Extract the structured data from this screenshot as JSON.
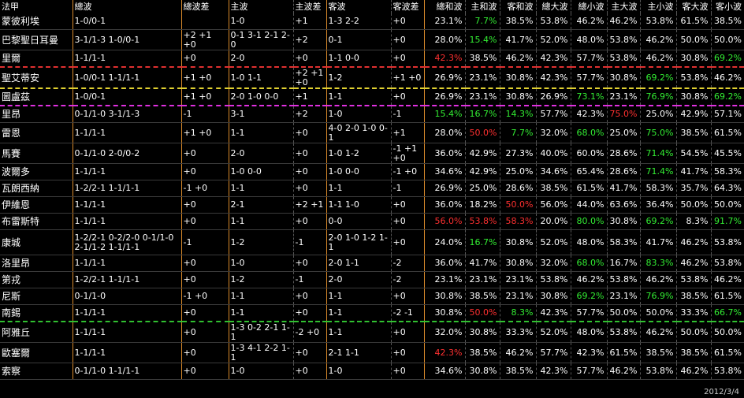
{
  "chart_data": {
    "type": "table",
    "columns": [
      "法甲",
      "總波",
      "總波差",
      "主波",
      "主波差",
      "客波",
      "客波差",
      "總和波",
      "主和波",
      "客和波",
      "總大波",
      "總小波",
      "主大波",
      "主小波",
      "客大波",
      "客小波"
    ],
    "rows": [
      [
        "蒙彼利埃",
        "1-0/0-1",
        "",
        "1-0",
        "+1",
        "1-3 2-2",
        "+0",
        "23.1%",
        "7.7%",
        "38.5%",
        "53.8%",
        "46.2%",
        "46.2%",
        "53.8%",
        "61.5%",
        "38.5%"
      ],
      [
        "巴黎聖日耳曼",
        "3-1/1-3 1-0/0-1",
        "+2 +1 +0",
        "0-1 3-1 2-1 2-0",
        "+2",
        "0-1",
        "+0",
        "28.0%",
        "15.4%",
        "41.7%",
        "52.0%",
        "48.0%",
        "53.8%",
        "46.2%",
        "50.0%",
        "50.0%"
      ],
      [
        "里爾",
        "1-1/1-1",
        "+0",
        "2-0",
        "+0",
        "1-1 0-0",
        "+0",
        "42.3%",
        "38.5%",
        "46.2%",
        "42.3%",
        "57.7%",
        "53.8%",
        "46.2%",
        "30.8%",
        "69.2%"
      ],
      [
        "聖艾蒂安",
        "1-0/0-1 1-1/1-1",
        "+1 +0",
        "1-0 1-1",
        "+2 +1 +0",
        "1-2",
        "+1 +0",
        "26.9%",
        "23.1%",
        "30.8%",
        "42.3%",
        "57.7%",
        "30.8%",
        "69.2%",
        "53.8%",
        "46.2%"
      ],
      [
        "圖盧茲",
        "1-0/0-1",
        "+1 +0",
        "2-0 1-0 0-0",
        "+1",
        "1-1",
        "+0",
        "26.9%",
        "23.1%",
        "30.8%",
        "26.9%",
        "73.1%",
        "23.1%",
        "76.9%",
        "30.8%",
        "69.2%"
      ],
      [
        "里昂",
        "0-1/1-0 3-1/1-3",
        "-1",
        "3-1",
        "+2",
        "1-0",
        "-1",
        "15.4%",
        "16.7%",
        "14.3%",
        "57.7%",
        "42.3%",
        "75.0%",
        "25.0%",
        "42.9%",
        "57.1%"
      ],
      [
        "雷恩",
        "1-1/1-1",
        "+1 +0",
        "1-1",
        "+0",
        "4-0 2-0 1-0 0-1",
        "+1",
        "28.0%",
        "50.0%",
        "7.7%",
        "32.0%",
        "68.0%",
        "25.0%",
        "75.0%",
        "38.5%",
        "61.5%"
      ],
      [
        "馬賽",
        "0-1/1-0 2-0/0-2",
        "+0",
        "2-0",
        "+0",
        "1-0 1-2",
        "-1 +1 +0",
        "36.0%",
        "42.9%",
        "27.3%",
        "40.0%",
        "60.0%",
        "28.6%",
        "71.4%",
        "54.5%",
        "45.5%"
      ],
      [
        "波爾多",
        "1-1/1-1",
        "+0",
        "1-0 0-0",
        "+0",
        "1-0 0-0",
        "-1 +0",
        "34.6%",
        "42.9%",
        "25.0%",
        "34.6%",
        "65.4%",
        "28.6%",
        "71.4%",
        "41.7%",
        "58.3%"
      ],
      [
        "瓦朗西納",
        "1-2/2-1 1-1/1-1",
        "-1 +0",
        "1-1",
        "+0",
        "1-1",
        "-1",
        "26.9%",
        "25.0%",
        "28.6%",
        "38.5%",
        "61.5%",
        "41.7%",
        "58.3%",
        "35.7%",
        "64.3%"
      ],
      [
        "伊維恩",
        "1-1/1-1",
        "+0",
        "2-1",
        "+2 +1",
        "1-1 1-0",
        "+0",
        "36.0%",
        "18.2%",
        "50.0%",
        "56.0%",
        "44.0%",
        "63.6%",
        "36.4%",
        "50.0%",
        "50.0%"
      ],
      [
        "布雷斯特",
        "1-1/1-1",
        "+0",
        "1-1",
        "+0",
        "0-0",
        "+0",
        "56.0%",
        "53.8%",
        "58.3%",
        "20.0%",
        "80.0%",
        "30.8%",
        "69.2%",
        "8.3%",
        "91.7%"
      ],
      [
        "康城",
        "1-2/2-1 0-2/2-0 0-1/1-0 2-1/1-2 1-1/1-1",
        "-1",
        "1-2",
        "-1",
        "2-0 1-0 1-2 1-1",
        "+0",
        "24.0%",
        "16.7%",
        "30.8%",
        "52.0%",
        "48.0%",
        "58.3%",
        "41.7%",
        "46.2%",
        "53.8%"
      ],
      [
        "洛里昂",
        "1-1/1-1",
        "+0",
        "1-0",
        "+0",
        "2-0 1-1",
        "-2",
        "36.0%",
        "41.7%",
        "30.8%",
        "32.0%",
        "68.0%",
        "16.7%",
        "83.3%",
        "46.2%",
        "53.8%"
      ],
      [
        "第戎",
        "1-2/2-1 1-1/1-1",
        "+0",
        "1-2",
        "-1",
        "2-0",
        "-2",
        "23.1%",
        "23.1%",
        "23.1%",
        "53.8%",
        "46.2%",
        "53.8%",
        "46.2%",
        "53.8%",
        "46.2%"
      ],
      [
        "尼斯",
        "0-1/1-0",
        "-1 +0",
        "1-1",
        "+0",
        "1-1",
        "+0",
        "30.8%",
        "38.5%",
        "23.1%",
        "30.8%",
        "69.2%",
        "23.1%",
        "76.9%",
        "38.5%",
        "61.5%"
      ],
      [
        "南錫",
        "1-1/1-1",
        "+0",
        "1-1",
        "+0",
        "1-1",
        "-2 -1",
        "30.8%",
        "50.0%",
        "8.3%",
        "42.3%",
        "57.7%",
        "50.0%",
        "50.0%",
        "33.3%",
        "66.7%"
      ],
      [
        "阿雅丘",
        "1-1/1-1",
        "+0",
        "1-3 0-2 2-1 1-1",
        "-2 +0",
        "1-1",
        "+0",
        "32.0%",
        "30.8%",
        "33.3%",
        "52.0%",
        "48.0%",
        "53.8%",
        "46.2%",
        "50.0%",
        "50.0%"
      ],
      [
        "歐塞爾",
        "1-1/1-1",
        "+0",
        "1-3 4-1 2-2 1-1",
        "+0",
        "2-1 1-1",
        "+0",
        "42.3%",
        "38.5%",
        "46.2%",
        "57.7%",
        "42.3%",
        "61.5%",
        "38.5%",
        "38.5%",
        "61.5%"
      ],
      [
        "索察",
        "0-1/1-0 1-1/1-1",
        "+0",
        "1-0",
        "+0",
        "1-0",
        "+0",
        "34.6%",
        "30.8%",
        "38.5%",
        "42.3%",
        "57.7%",
        "46.2%",
        "53.8%",
        "46.2%",
        "53.8%"
      ]
    ],
    "highlights": {
      "red": [
        [
          2,
          7
        ],
        [
          6,
          8
        ],
        [
          10,
          9
        ],
        [
          11,
          7
        ],
        [
          11,
          8
        ],
        [
          11,
          9
        ],
        [
          16,
          8
        ],
        [
          18,
          7
        ],
        [
          5,
          12
        ]
      ],
      "green": [
        [
          0,
          8
        ],
        [
          1,
          8
        ],
        [
          2,
          15
        ],
        [
          3,
          13
        ],
        [
          4,
          11
        ],
        [
          4,
          13
        ],
        [
          4,
          15
        ],
        [
          5,
          7
        ],
        [
          5,
          8
        ],
        [
          5,
          9
        ],
        [
          6,
          9
        ],
        [
          6,
          11
        ],
        [
          6,
          13
        ],
        [
          7,
          13
        ],
        [
          8,
          13
        ],
        [
          11,
          11
        ],
        [
          11,
          13
        ],
        [
          11,
          15
        ],
        [
          12,
          8
        ],
        [
          13,
          11
        ],
        [
          13,
          13
        ],
        [
          15,
          11
        ],
        [
          15,
          13
        ],
        [
          16,
          9
        ],
        [
          16,
          15
        ]
      ]
    },
    "separators": {
      "2": "red",
      "3": "yellow",
      "4": "magenta",
      "16": "green"
    },
    "date": "2012/3/4"
  },
  "colors": {
    "red": "#ff3030",
    "green": "#33ee33",
    "text": "#ffffff",
    "bg": "#000000"
  }
}
